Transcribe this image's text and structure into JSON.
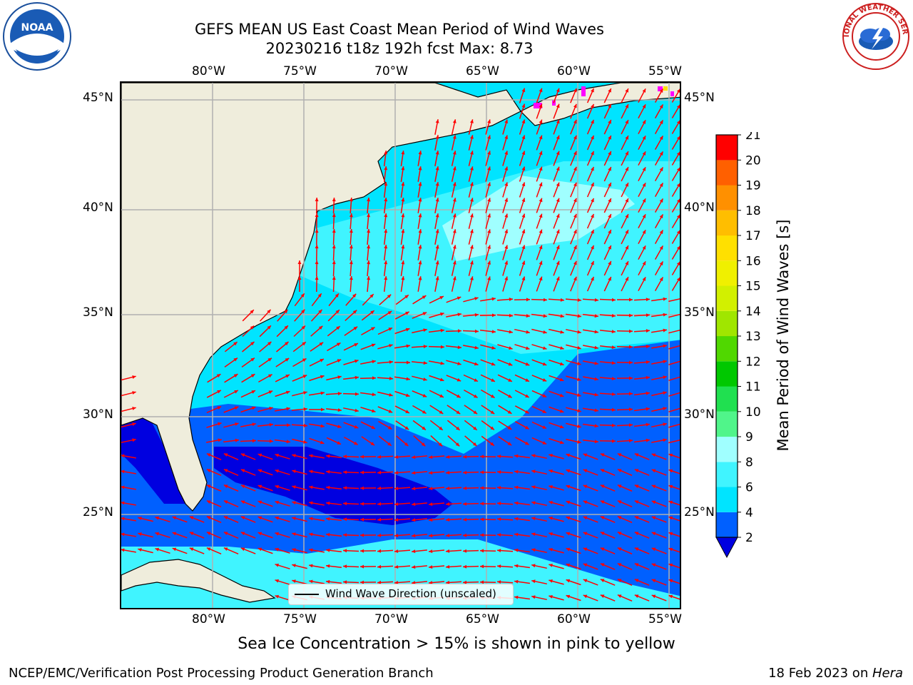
{
  "header": {
    "title_line1": "GEFS MEAN US East Coast Mean Period of Wind Waves",
    "title_line2": "20230216 t18z 192h fcst   Max: 8.73"
  },
  "map": {
    "lon_labels": [
      "80°W",
      "75°W",
      "70°W",
      "65°W",
      "60°W",
      "55°W"
    ],
    "lat_labels": [
      "45°N",
      "40°N",
      "35°N",
      "30°N",
      "25°N"
    ],
    "legend_label": "Wind Wave Direction (unscaled)",
    "arrow_color": "#ff0000",
    "land_color": "#efeddc",
    "grid_color": "#b0b0b0"
  },
  "colorbar": {
    "title": "Mean Period of Wind Waves [s]",
    "tick_labels": [
      "2",
      "4",
      "6",
      "8",
      "9",
      "10",
      "11",
      "12",
      "13",
      "14",
      "15",
      "16",
      "17",
      "18",
      "19",
      "20",
      "21"
    ],
    "colors": [
      "#0060ff",
      "#00e4ff",
      "#40f4ff",
      "#a0ffff",
      "#50f58a",
      "#20e050",
      "#00c800",
      "#50d800",
      "#a0e600",
      "#d2f000",
      "#f0f000",
      "#ffe000",
      "#ffbe00",
      "#ff9000",
      "#ff6000",
      "#ff3000",
      "#ff0000"
    ],
    "underflow_color": "#0000e0"
  },
  "notes": {
    "sea_ice": "Sea Ice Concentration > 15% is shown in pink to yellow"
  },
  "footer": {
    "left": "NCEP/EMC/Verification Post Processing Product Generation Branch",
    "right_date": "18 Feb 2023 on ",
    "right_machine": "Hera"
  },
  "logos": {
    "noaa_text": "NOAA",
    "nws_text": "NATIONAL WEATHER SERVICE"
  }
}
